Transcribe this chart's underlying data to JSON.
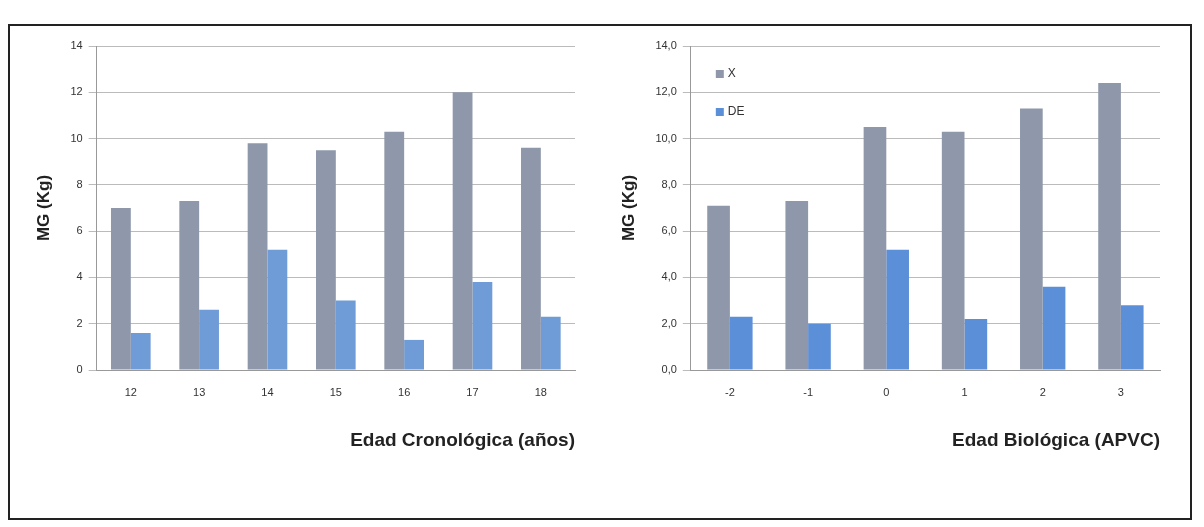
{
  "chart_data": [
    {
      "type": "bar",
      "xlabel": "Edad Cronológica (años)",
      "ylabel": "MG (Kg)",
      "categories": [
        "12",
        "13",
        "14",
        "15",
        "16",
        "17",
        "18"
      ],
      "series": [
        {
          "color": "#8f98aa",
          "values": [
            7.0,
            7.3,
            9.8,
            9.5,
            10.3,
            12.0,
            9.6
          ]
        },
        {
          "color": "#6f9bd6",
          "values": [
            1.6,
            2.6,
            5.2,
            3.0,
            1.3,
            3.8,
            2.3
          ]
        }
      ],
      "ylim": [
        0,
        14
      ],
      "yticks": [
        0,
        2,
        4,
        6,
        8,
        10,
        12,
        14
      ],
      "grid": "y",
      "legend": false
    },
    {
      "type": "bar",
      "xlabel": "Edad Biológica (APVC)",
      "ylabel": "MG (Kg)",
      "categories": [
        "-2",
        "-1",
        "0",
        "1",
        "2",
        "3"
      ],
      "series": [
        {
          "name": "X",
          "color": "#8f98aa",
          "values": [
            7.1,
            7.3,
            10.5,
            10.3,
            11.3,
            12.4
          ]
        },
        {
          "name": "DE",
          "color": "#5b8fd8",
          "values": [
            2.3,
            2.0,
            5.2,
            2.2,
            3.6,
            2.8
          ]
        }
      ],
      "ylim": [
        0,
        14
      ],
      "yticks": [
        {
          "value": 0,
          "label": "0,0"
        },
        {
          "value": 2,
          "label": "2,0"
        },
        {
          "value": 4,
          "label": "4,0"
        },
        {
          "value": 6,
          "label": "6,0"
        },
        {
          "value": 8,
          "label": "8,0"
        },
        {
          "value": 10,
          "label": "10,0"
        },
        {
          "value": 12,
          "label": "12,0"
        },
        {
          "value": 14,
          "label": "14,0"
        }
      ],
      "grid": "y",
      "legend": "top left"
    }
  ]
}
